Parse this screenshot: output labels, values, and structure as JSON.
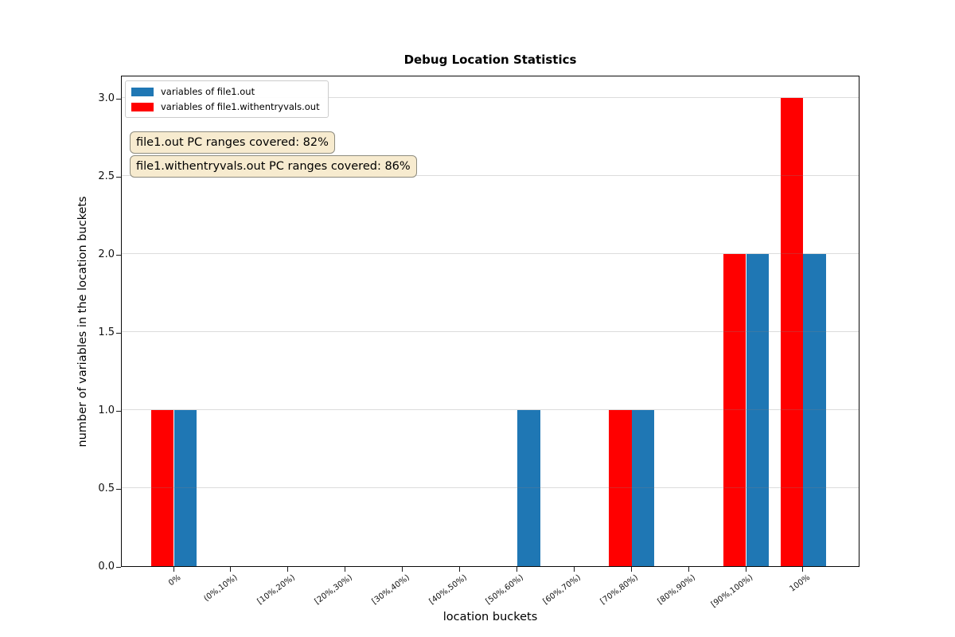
{
  "chart_data": {
    "type": "bar",
    "title": "Debug Location Statistics",
    "xlabel": "location buckets",
    "ylabel": "number of variables in the location buckets",
    "categories": [
      "0%",
      "(0%,10%)",
      "[10%,20%)",
      "[20%,30%)",
      "[30%,40%)",
      "[40%,50%)",
      "[50%,60%)",
      "[60%,70%)",
      "[70%,80%)",
      "[80%,90%)",
      "[90%,100%)",
      "100%"
    ],
    "series": [
      {
        "name": "variables of file1.out",
        "color": "#1f77b4",
        "offset": 0.2,
        "values": [
          1,
          0,
          0,
          0,
          0,
          0,
          1,
          0,
          1,
          0,
          2,
          2
        ]
      },
      {
        "name": "variables of file1.withentryvals.out",
        "color": "#ff0000",
        "offset": -0.2,
        "values": [
          1,
          0,
          0,
          0,
          0,
          0,
          0,
          0,
          1,
          0,
          2,
          3
        ]
      }
    ],
    "bar_width_units": 0.4,
    "yticks": [
      0.0,
      0.5,
      1.0,
      1.5,
      2.0,
      2.5,
      3.0
    ],
    "ylim": [
      0,
      3.15
    ],
    "grid": "horizontal",
    "gridline_color": "rgba(128,128,128,0.28)",
    "legend_position": "upper-left",
    "annotations": [
      {
        "text": "file1.out PC ranges covered: 82%",
        "bg": "#f7ebcf",
        "border": "#8e8c7f"
      },
      {
        "text": "file1.withentryvals.out PC ranges covered: 86%",
        "bg": "#f7ebcf",
        "border": "#8e8c7f"
      }
    ]
  }
}
